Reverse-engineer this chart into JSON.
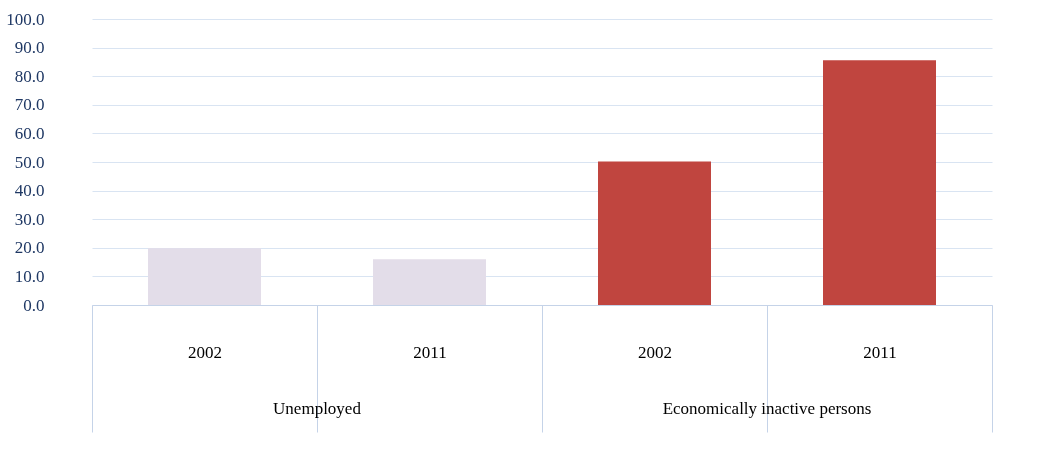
{
  "chart_data": {
    "type": "bar",
    "categories": [
      "2002",
      "2011",
      "2002",
      "2011"
    ],
    "values": [
      19.8,
      16.0,
      50.2,
      85.6
    ],
    "colors": [
      "#e3dde9",
      "#e3dde9",
      "#c0453f",
      "#c0453f"
    ],
    "ylim": [
      0,
      100
    ],
    "yticks": [
      {
        "value": 0,
        "label": "0.0"
      },
      {
        "value": 10,
        "label": "10.0"
      },
      {
        "value": 20,
        "label": "20.0"
      },
      {
        "value": 30,
        "label": "30.0"
      },
      {
        "value": 40,
        "label": "40.0"
      },
      {
        "value": 50,
        "label": "50.0"
      },
      {
        "value": 60,
        "label": "60.0"
      },
      {
        "value": 70,
        "label": "70.0"
      },
      {
        "value": 80,
        "label": "80.0"
      },
      {
        "value": 90,
        "label": "90.0"
      },
      {
        "value": 100,
        "label": "100.0"
      }
    ],
    "annotations": [
      "Unemployed",
      "Economically inactive persons"
    ],
    "grid": "y"
  }
}
